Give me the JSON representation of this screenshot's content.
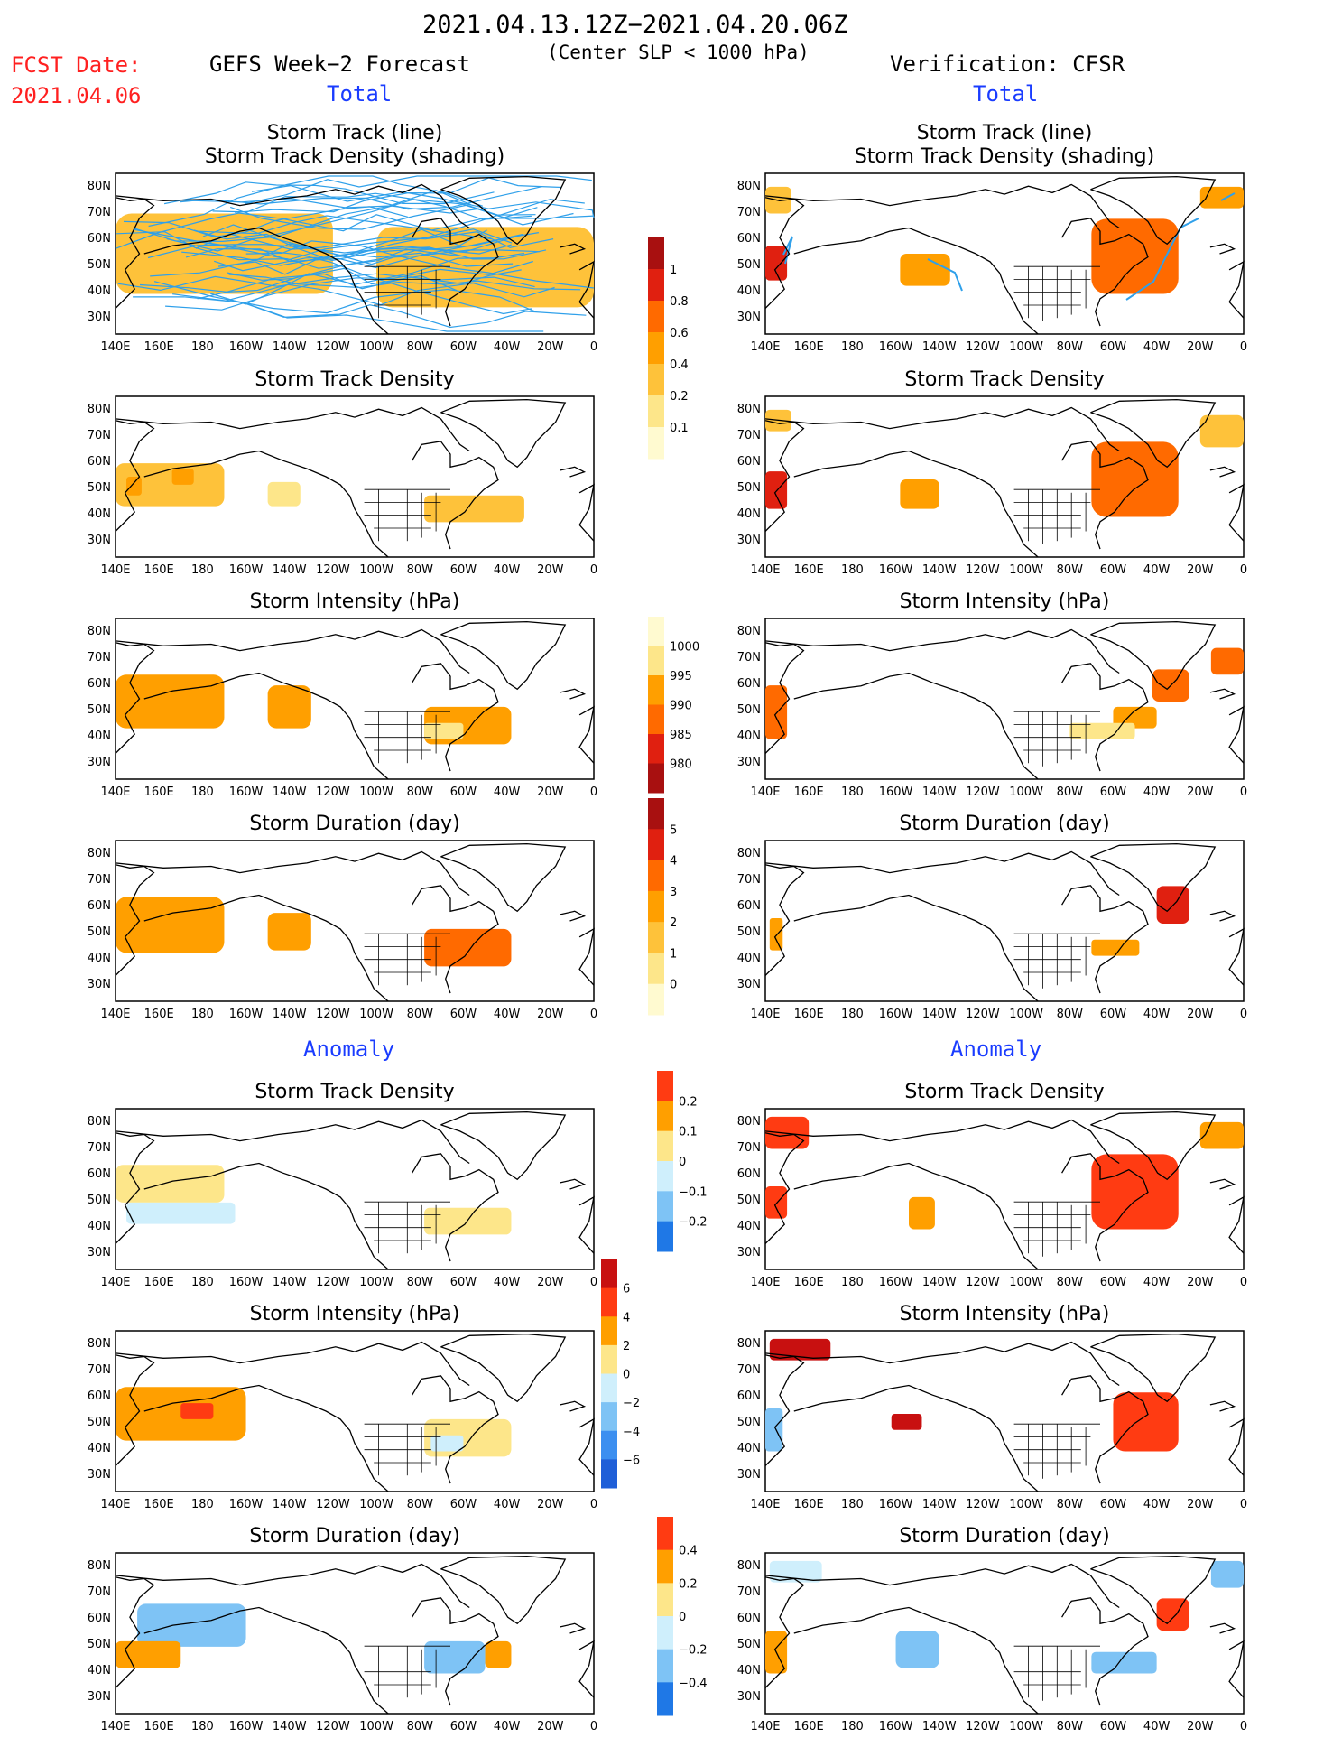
{
  "header": {
    "time_range": "2021.04.13.12Z−2021.04.20.06Z",
    "subtitle": "(Center SLP < 1000 hPa)",
    "fcst_label": "FCST Date:",
    "fcst_date": "2021.04.06",
    "left_model": "GEFS Week−2 Forecast",
    "left_total": "Total",
    "right_model": "Verification: CFSR",
    "right_total": "Total",
    "anomaly_left": "Anomaly",
    "anomaly_right": "Anomaly"
  },
  "panel_titles": {
    "track_line": "Storm Track (line)",
    "track_shading": "Storm Track Density (shading)",
    "density": "Storm Track Density",
    "intensity": "Storm Intensity (hPa)",
    "duration": "Storm Duration (day)"
  },
  "map_axes": {
    "lat_labels": [
      "80N",
      "70N",
      "60N",
      "50N",
      "40N",
      "30N"
    ],
    "lon_labels": [
      "140E",
      "160E",
      "180",
      "160W",
      "140W",
      "120W",
      "100W",
      "80W",
      "60W",
      "40W",
      "20W",
      "0"
    ]
  },
  "chart_data": [
    {
      "type": "heatmap",
      "id": "gefs-total-track-line",
      "title": "Storm Track (line)",
      "subtitle": "Storm Track Density (shading)",
      "xlim": [
        140,
        360
      ],
      "ylim": [
        25,
        85
      ],
      "regions": [
        {
          "lon": [
            140,
            240
          ],
          "lat": [
            40,
            70
          ],
          "value": 0.3
        },
        {
          "lon": [
            260,
            360
          ],
          "lat": [
            35,
            65
          ],
          "value": 0.2
        }
      ]
    },
    {
      "type": "heatmap",
      "id": "gefs-total-density",
      "title": "Storm Track Density",
      "xlim": [
        140,
        360
      ],
      "ylim": [
        25,
        85
      ],
      "regions": [
        {
          "lon": [
            140,
            190
          ],
          "lat": [
            44,
            60
          ],
          "value": 0.3
        },
        {
          "lon": [
            166,
            176
          ],
          "lat": [
            52,
            58
          ],
          "value": 0.45
        },
        {
          "lon": [
            145,
            152
          ],
          "lat": [
            48,
            55
          ],
          "value": 0.4
        },
        {
          "lon": [
            210,
            225
          ],
          "lat": [
            44,
            53
          ],
          "value": 0.15
        },
        {
          "lon": [
            282,
            328
          ],
          "lat": [
            38,
            48
          ],
          "value": 0.2
        },
        {
          "lon": [
            305,
            315
          ],
          "lat": [
            40,
            45
          ],
          "value": 0.3
        }
      ]
    },
    {
      "type": "heatmap",
      "id": "gefs-total-intensity",
      "title": "Storm Intensity (hPa)",
      "xlim": [
        140,
        360
      ],
      "ylim": [
        25,
        85
      ],
      "regions": [
        {
          "lon": [
            140,
            190
          ],
          "lat": [
            44,
            64
          ],
          "value": 990
        },
        {
          "lon": [
            210,
            230
          ],
          "lat": [
            44,
            60
          ],
          "value": 992
        },
        {
          "lon": [
            282,
            322
          ],
          "lat": [
            38,
            52
          ],
          "value": 993
        },
        {
          "lon": [
            282,
            300
          ],
          "lat": [
            40,
            46
          ],
          "value": 997
        }
      ]
    },
    {
      "type": "heatmap",
      "id": "gefs-total-duration",
      "title": "Storm Duration (day)",
      "xlim": [
        140,
        360
      ],
      "ylim": [
        25,
        85
      ],
      "regions": [
        {
          "lon": [
            140,
            190
          ],
          "lat": [
            43,
            64
          ],
          "value": 2.5
        },
        {
          "lon": [
            210,
            230
          ],
          "lat": [
            44,
            58
          ],
          "value": 2.8
        },
        {
          "lon": [
            282,
            322
          ],
          "lat": [
            38,
            52
          ],
          "value": 3.2
        }
      ]
    },
    {
      "type": "heatmap",
      "id": "cfsr-total-track-line",
      "title": "Storm Track (line)",
      "subtitle": "Storm Track Density (shading)",
      "xlim": [
        140,
        360
      ],
      "ylim": [
        25,
        85
      ],
      "regions": [
        {
          "lon": [
            140,
            152
          ],
          "lat": [
            70,
            80
          ],
          "value": 0.35
        },
        {
          "lon": [
            140,
            150
          ],
          "lat": [
            45,
            58
          ],
          "value": 0.8
        },
        {
          "lon": [
            202,
            225
          ],
          "lat": [
            43,
            55
          ],
          "value": 0.45
        },
        {
          "lon": [
            290,
            330
          ],
          "lat": [
            40,
            68
          ],
          "value": 0.7
        },
        {
          "lon": [
            340,
            360
          ],
          "lat": [
            72,
            80
          ],
          "value": 0.4
        }
      ]
    },
    {
      "type": "heatmap",
      "id": "cfsr-total-density",
      "title": "Storm Track Density",
      "xlim": [
        140,
        360
      ],
      "ylim": [
        25,
        85
      ],
      "regions": [
        {
          "lon": [
            140,
            152
          ],
          "lat": [
            72,
            80
          ],
          "value": 0.35
        },
        {
          "lon": [
            140,
            150
          ],
          "lat": [
            43,
            57
          ],
          "value": 0.85
        },
        {
          "lon": [
            202,
            220
          ],
          "lat": [
            43,
            54
          ],
          "value": 0.45
        },
        {
          "lon": [
            290,
            330
          ],
          "lat": [
            40,
            68
          ],
          "value": 0.75
        },
        {
          "lon": [
            340,
            360
          ],
          "lat": [
            66,
            78
          ],
          "value": 0.3
        }
      ]
    },
    {
      "type": "heatmap",
      "id": "cfsr-total-intensity",
      "title": "Storm Intensity (hPa)",
      "xlim": [
        140,
        360
      ],
      "ylim": [
        25,
        85
      ],
      "regions": [
        {
          "lon": [
            140,
            150
          ],
          "lat": [
            40,
            60
          ],
          "value": 987
        },
        {
          "lon": [
            300,
            320
          ],
          "lat": [
            44,
            52
          ],
          "value": 990
        },
        {
          "lon": [
            318,
            335
          ],
          "lat": [
            54,
            66
          ],
          "value": 988
        },
        {
          "lon": [
            280,
            310
          ],
          "lat": [
            40,
            46
          ],
          "value": 998
        },
        {
          "lon": [
            345,
            360
          ],
          "lat": [
            64,
            74
          ],
          "value": 987
        }
      ]
    },
    {
      "type": "heatmap",
      "id": "cfsr-total-duration",
      "title": "Storm Duration (day)",
      "xlim": [
        140,
        360
      ],
      "ylim": [
        25,
        85
      ],
      "regions": [
        {
          "lon": [
            320,
            335
          ],
          "lat": [
            54,
            68
          ],
          "value": 4.5
        },
        {
          "lon": [
            290,
            312
          ],
          "lat": [
            42,
            48
          ],
          "value": 2.0
        },
        {
          "lon": [
            142,
            148
          ],
          "lat": [
            44,
            56
          ],
          "value": 2.2
        }
      ]
    },
    {
      "type": "heatmap",
      "id": "gefs-anom-density",
      "title": "Storm Track Density",
      "xlim": [
        140,
        360
      ],
      "ylim": [
        25,
        85
      ],
      "regions": [
        {
          "lon": [
            140,
            190
          ],
          "lat": [
            50,
            64
          ],
          "value": 0.07
        },
        {
          "lon": [
            145,
            195
          ],
          "lat": [
            42,
            50
          ],
          "value": -0.04
        },
        {
          "lon": [
            282,
            322
          ],
          "lat": [
            38,
            48
          ],
          "value": 0.06
        }
      ]
    },
    {
      "type": "heatmap",
      "id": "gefs-anom-intensity",
      "title": "Storm Intensity (hPa)",
      "xlim": [
        140,
        360
      ],
      "ylim": [
        25,
        85
      ],
      "regions": [
        {
          "lon": [
            140,
            200
          ],
          "lat": [
            44,
            64
          ],
          "value": 3
        },
        {
          "lon": [
            170,
            185
          ],
          "lat": [
            52,
            58
          ],
          "value": 5
        },
        {
          "lon": [
            282,
            322
          ],
          "lat": [
            38,
            52
          ],
          "value": 1.5
        },
        {
          "lon": [
            285,
            300
          ],
          "lat": [
            40,
            46
          ],
          "value": -1
        }
      ]
    },
    {
      "type": "heatmap",
      "id": "gefs-anom-duration",
      "title": "Storm Duration (day)",
      "xlim": [
        140,
        360
      ],
      "ylim": [
        25,
        85
      ],
      "regions": [
        {
          "lon": [
            150,
            200
          ],
          "lat": [
            50,
            66
          ],
          "value": -0.25
        },
        {
          "lon": [
            140,
            170
          ],
          "lat": [
            42,
            52
          ],
          "value": 0.3
        },
        {
          "lon": [
            282,
            310
          ],
          "lat": [
            40,
            52
          ],
          "value": -0.35
        },
        {
          "lon": [
            310,
            322
          ],
          "lat": [
            42,
            52
          ],
          "value": 0.3
        }
      ]
    },
    {
      "type": "heatmap",
      "id": "cfsr-anom-density",
      "title": "Storm Track Density",
      "xlim": [
        140,
        360
      ],
      "ylim": [
        25,
        85
      ],
      "regions": [
        {
          "lon": [
            140,
            160
          ],
          "lat": [
            70,
            82
          ],
          "value": 0.2
        },
        {
          "lon": [
            140,
            150
          ],
          "lat": [
            44,
            56
          ],
          "value": 0.2
        },
        {
          "lon": [
            206,
            218
          ],
          "lat": [
            40,
            52
          ],
          "value": 0.18
        },
        {
          "lon": [
            290,
            330
          ],
          "lat": [
            40,
            68
          ],
          "value": 0.2
        },
        {
          "lon": [
            340,
            360
          ],
          "lat": [
            70,
            80
          ],
          "value": 0.15
        }
      ]
    },
    {
      "type": "heatmap",
      "id": "cfsr-anom-intensity",
      "title": "Storm Intensity (hPa)",
      "xlim": [
        140,
        360
      ],
      "ylim": [
        25,
        85
      ],
      "regions": [
        {
          "lon": [
            142,
            170
          ],
          "lat": [
            74,
            82
          ],
          "value": 7
        },
        {
          "lon": [
            198,
            212
          ],
          "lat": [
            48,
            54
          ],
          "value": 7
        },
        {
          "lon": [
            140,
            148
          ],
          "lat": [
            40,
            56
          ],
          "value": -3
        },
        {
          "lon": [
            300,
            330
          ],
          "lat": [
            40,
            62
          ],
          "value": 5
        }
      ]
    },
    {
      "type": "heatmap",
      "id": "cfsr-anom-duration",
      "title": "Storm Duration (day)",
      "xlim": [
        140,
        360
      ],
      "ylim": [
        25,
        85
      ],
      "regions": [
        {
          "lon": [
            142,
            166
          ],
          "lat": [
            74,
            82
          ],
          "value": -0.2
        },
        {
          "lon": [
            140,
            150
          ],
          "lat": [
            40,
            56
          ],
          "value": 0.3
        },
        {
          "lon": [
            200,
            220
          ],
          "lat": [
            42,
            56
          ],
          "value": -0.4
        },
        {
          "lon": [
            290,
            320
          ],
          "lat": [
            40,
            48
          ],
          "value": -0.4
        },
        {
          "lon": [
            320,
            335
          ],
          "lat": [
            56,
            68
          ],
          "value": 0.4
        },
        {
          "lon": [
            345,
            360
          ],
          "lat": [
            72,
            82
          ],
          "value": -0.3
        }
      ]
    }
  ],
  "colorbars": [
    {
      "id": "density",
      "labels": [
        "1",
        "0.8",
        "0.6",
        "0.4",
        "0.2",
        "0.1"
      ],
      "colors": [
        "#a81010",
        "#e02010",
        "#ff6a00",
        "#ff9f00",
        "#fec23a",
        "#fde68a",
        "#fffad0"
      ]
    },
    {
      "id": "intensity",
      "labels": [
        "1000",
        "995",
        "990",
        "985",
        "980"
      ],
      "colors": [
        "#fffad0",
        "#fde68a",
        "#ff9f00",
        "#ff6a00",
        "#e02010",
        "#a81010"
      ]
    },
    {
      "id": "duration",
      "labels": [
        "5",
        "4",
        "3",
        "2",
        "1",
        "0"
      ],
      "colors": [
        "#a81010",
        "#e02010",
        "#ff6a00",
        "#ff9f00",
        "#fec23a",
        "#fde68a",
        "#fffad0"
      ]
    },
    {
      "id": "anom-density",
      "labels": [
        "0.2",
        "0.1",
        "0",
        "−0.1",
        "−0.2"
      ],
      "colors": [
        "#ff3b12",
        "#ff9f00",
        "#fde68a",
        "#cfeffc",
        "#7ec3f5",
        "#1f78e6"
      ]
    },
    {
      "id": "anom-intensity",
      "labels": [
        "6",
        "4",
        "2",
        "0",
        "−2",
        "−4",
        "−6"
      ],
      "colors": [
        "#c81010",
        "#ff3b12",
        "#ff9f00",
        "#fde68a",
        "#cfeffc",
        "#7ec3f5",
        "#3c8ff0",
        "#1f5fd8"
      ]
    },
    {
      "id": "anom-duration",
      "labels": [
        "0.4",
        "0.2",
        "0",
        "−0.2",
        "−0.4"
      ],
      "colors": [
        "#ff3b12",
        "#ff9f00",
        "#fde68a",
        "#cfeffc",
        "#7ec3f5",
        "#1f78e6"
      ]
    }
  ],
  "colors": {
    "track_line": "#2fa0ea",
    "coast": "#000000",
    "frame": "#000000"
  }
}
